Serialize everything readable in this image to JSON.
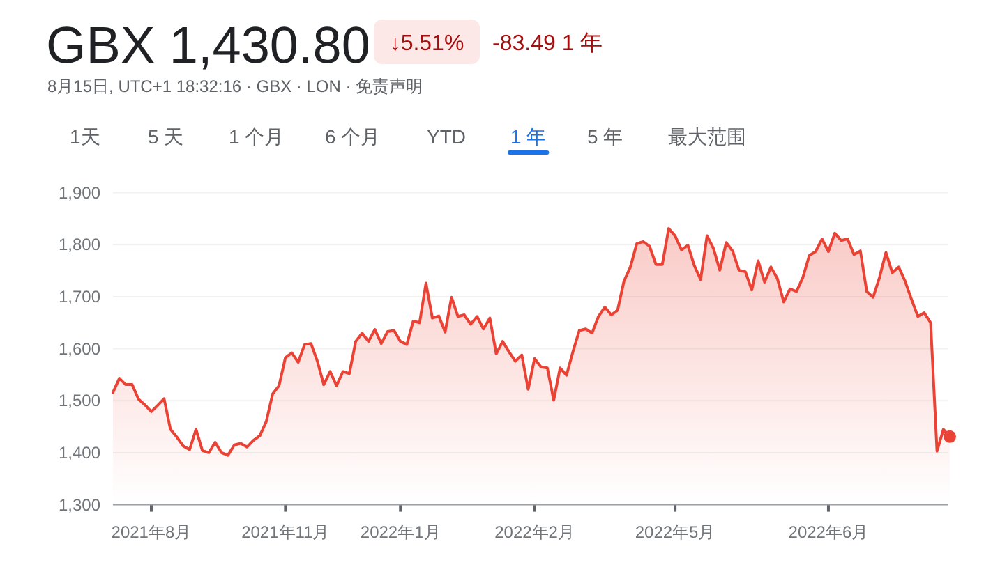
{
  "chart_data": {
    "type": "area",
    "title": "GBX 1,430.80",
    "subtitle": "8月15日, UTC+1 18:32:16 · GBX · LON · 免责声明",
    "annotations": [
      "↓5.51%",
      "-83.49 1 年",
      "1天",
      "5 天",
      "1 个月",
      "6 个月",
      "YTD",
      "1 年",
      "5 年",
      "最大范围"
    ],
    "categories": [
      null,
      null,
      null,
      null,
      null,
      null,
      "2021年8月",
      null,
      null,
      null,
      null,
      null,
      null,
      null,
      null,
      null,
      null,
      null,
      null,
      null,
      null,
      null,
      null,
      null,
      null,
      null,
      null,
      "2021年11月",
      null,
      null,
      null,
      null,
      null,
      null,
      null,
      null,
      null,
      null,
      null,
      null,
      null,
      null,
      null,
      null,
      null,
      "2022年1月",
      null,
      null,
      null,
      null,
      null,
      null,
      null,
      null,
      null,
      null,
      null,
      null,
      null,
      null,
      null,
      null,
      null,
      null,
      null,
      null,
      "2022年2月",
      null,
      null,
      null,
      null,
      null,
      null,
      null,
      null,
      null,
      null,
      null,
      null,
      null,
      null,
      null,
      null,
      null,
      null,
      null,
      null,
      null,
      "2022年5月",
      null,
      null,
      null,
      null,
      null,
      null,
      null,
      null,
      null,
      null,
      null,
      null,
      null,
      null,
      null,
      null,
      null,
      null,
      null,
      null,
      null,
      null,
      null,
      "2022年6月",
      null,
      null,
      null,
      null,
      null,
      null,
      null,
      null,
      null,
      null,
      null,
      null,
      null,
      null,
      null,
      null,
      null,
      null,
      null
    ],
    "series": [
      {
        "color": "#ea4335",
        "values": [
          1516,
          1543,
          1531,
          1531,
          1503,
          1492,
          1479,
          1491,
          1504,
          1445,
          1430,
          1413,
          1406,
          1445,
          1404,
          1400,
          1420,
          1400,
          1395,
          1415,
          1418,
          1411,
          1424,
          1433,
          1460,
          1513,
          1529,
          1583,
          1592,
          1574,
          1608,
          1610,
          1576,
          1531,
          1556,
          1529,
          1556,
          1552,
          1614,
          1630,
          1614,
          1637,
          1610,
          1633,
          1635,
          1614,
          1608,
          1653,
          1650,
          1726,
          1659,
          1663,
          1632,
          1699,
          1662,
          1665,
          1647,
          1662,
          1638,
          1659,
          1590,
          1614,
          1594,
          1576,
          1588,
          1522,
          1581,
          1565,
          1563,
          1501,
          1563,
          1549,
          1594,
          1635,
          1638,
          1630,
          1662,
          1680,
          1665,
          1674,
          1730,
          1757,
          1802,
          1806,
          1797,
          1762,
          1762,
          1831,
          1817,
          1790,
          1799,
          1760,
          1733,
          1817,
          1793,
          1751,
          1804,
          1788,
          1751,
          1748,
          1713,
          1769,
          1728,
          1757,
          1735,
          1690,
          1715,
          1710,
          1737,
          1779,
          1787,
          1811,
          1787,
          1822,
          1808,
          1811,
          1781,
          1788,
          1710,
          1699,
          1737,
          1785,
          1746,
          1757,
          1730,
          1695,
          1662,
          1669,
          1650,
          1403,
          1445,
          1431
        ]
      },
      {
        "type": "scatter",
        "color": "#ea4335",
        "values": [
          null,
          null,
          null,
          null,
          null,
          null,
          null,
          null,
          null,
          null,
          null,
          null,
          null,
          null,
          null,
          null,
          null,
          null,
          null,
          null,
          null,
          null,
          null,
          null,
          null,
          null,
          null,
          null,
          null,
          null,
          null,
          null,
          null,
          null,
          null,
          null,
          null,
          null,
          null,
          null,
          null,
          null,
          null,
          null,
          null,
          null,
          null,
          null,
          null,
          null,
          null,
          null,
          null,
          null,
          null,
          null,
          null,
          null,
          null,
          null,
          null,
          null,
          null,
          null,
          null,
          null,
          null,
          null,
          null,
          null,
          null,
          null,
          null,
          null,
          null,
          null,
          null,
          null,
          null,
          null,
          null,
          null,
          null,
          null,
          null,
          null,
          null,
          null,
          null,
          null,
          null,
          null,
          null,
          null,
          null,
          null,
          null,
          null,
          null,
          null,
          null,
          null,
          null,
          null,
          null,
          null,
          null,
          null,
          null,
          null,
          null,
          null,
          null,
          null,
          null,
          null,
          null,
          null,
          null,
          null,
          null,
          null,
          null,
          null,
          null,
          null,
          null,
          null,
          null,
          null,
          null,
          1431
        ]
      }
    ],
    "ylim": [
      1300,
      1900
    ],
    "yticks": [
      {
        "value": 1300,
        "label": "1,300"
      },
      {
        "value": 1400,
        "label": "1,400"
      },
      {
        "value": 1500,
        "label": "1,500"
      },
      {
        "value": 1600,
        "label": "1,600"
      },
      {
        "value": 1700,
        "label": "1,700"
      },
      {
        "value": 1800,
        "label": "1,800"
      },
      {
        "value": 1900,
        "label": "1,900"
      }
    ],
    "grid": "y"
  }
}
